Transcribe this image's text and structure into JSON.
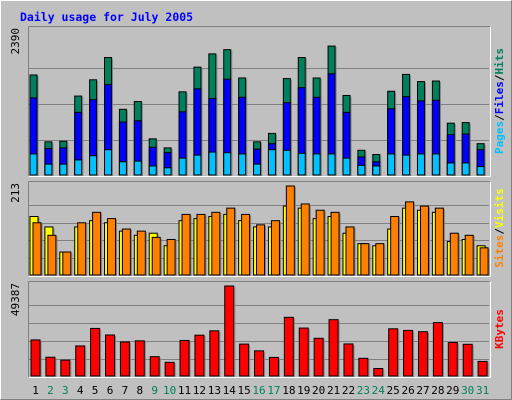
{
  "title": "Daily usage for July 2005",
  "colors": {
    "background": "#c0c0c0",
    "plot_bg": "#c0c0c0",
    "title": "#0000ff",
    "hits": "#00805c",
    "files": "#0000ff",
    "pages": "#00c0ff",
    "visits": "#ffff00",
    "sites": "#ff8000",
    "kbytes": "#ff0000",
    "day_weekday": "#000000",
    "day_weekend": "#00805c"
  },
  "chart_data": [
    {
      "type": "bar",
      "panel": "hits-files-pages",
      "ymax_label": "2390",
      "ylim": [
        0,
        2390
      ],
      "grid": true,
      "legend_parts": [
        "Pages",
        "Files",
        "Hits"
      ],
      "categories": [
        "1",
        "2",
        "3",
        "4",
        "5",
        "6",
        "7",
        "8",
        "9",
        "10",
        "11",
        "12",
        "13",
        "14",
        "15",
        "16",
        "17",
        "18",
        "19",
        "20",
        "21",
        "22",
        "23",
        "24",
        "25",
        "26",
        "27",
        "28",
        "29",
        "30",
        "31"
      ],
      "series": [
        {
          "name": "Hits",
          "values": [
            1660,
            550,
            560,
            1310,
            1580,
            1950,
            1090,
            1220,
            600,
            450,
            1380,
            1790,
            2010,
            2080,
            1610,
            550,
            690,
            1600,
            1950,
            1610,
            2140,
            1320,
            410,
            340,
            1390,
            1670,
            1550,
            1560,
            860,
            870,
            520
          ]
        },
        {
          "name": "Files",
          "values": [
            1280,
            440,
            450,
            1040,
            1250,
            1500,
            880,
            900,
            460,
            370,
            1050,
            1430,
            1270,
            1590,
            1290,
            430,
            520,
            1200,
            1450,
            1290,
            1680,
            1040,
            300,
            220,
            1100,
            1300,
            1230,
            1240,
            670,
            680,
            420
          ]
        },
        {
          "name": "Pages",
          "values": [
            350,
            180,
            180,
            250,
            320,
            420,
            220,
            230,
            150,
            120,
            280,
            330,
            380,
            370,
            350,
            180,
            420,
            410,
            360,
            350,
            350,
            280,
            160,
            150,
            350,
            330,
            350,
            350,
            200,
            200,
            140
          ]
        }
      ]
    },
    {
      "type": "bar",
      "panel": "visits-sites",
      "ymax_label": "213",
      "ylim": [
        0,
        213
      ],
      "grid": true,
      "legend_parts": [
        "Sites",
        "Visits"
      ],
      "categories": [
        "1",
        "2",
        "3",
        "4",
        "5",
        "6",
        "7",
        "8",
        "9",
        "10",
        "11",
        "12",
        "13",
        "14",
        "15",
        "16",
        "17",
        "18",
        "19",
        "20",
        "21",
        "22",
        "23",
        "24",
        "25",
        "26",
        "27",
        "28",
        "29",
        "30",
        "31"
      ],
      "series": [
        {
          "name": "Visits",
          "values": [
            140,
            115,
            55,
            115,
            130,
            125,
            105,
            95,
            100,
            70,
            130,
            135,
            140,
            145,
            130,
            115,
            115,
            165,
            160,
            135,
            140,
            100,
            75,
            70,
            110,
            160,
            155,
            150,
            80,
            85,
            70
          ]
        },
        {
          "name": "Sites",
          "values": [
            125,
            95,
            55,
            125,
            150,
            135,
            110,
            105,
            90,
            85,
            145,
            145,
            150,
            160,
            145,
            120,
            130,
            213,
            170,
            155,
            150,
            115,
            75,
            75,
            140,
            175,
            165,
            160,
            100,
            95,
            65
          ]
        }
      ]
    },
    {
      "type": "bar",
      "panel": "kbytes",
      "ymax_label": "49387",
      "ylim": [
        0,
        49387
      ],
      "grid": true,
      "legend_parts": [
        "KBytes"
      ],
      "categories": [
        "1",
        "2",
        "3",
        "4",
        "5",
        "6",
        "7",
        "8",
        "9",
        "10",
        "11",
        "12",
        "13",
        "14",
        "15",
        "16",
        "17",
        "18",
        "19",
        "20",
        "21",
        "22",
        "23",
        "24",
        "25",
        "26",
        "27",
        "28",
        "29",
        "30",
        "31"
      ],
      "series": [
        {
          "name": "KBytes",
          "values": [
            19800,
            10300,
            8700,
            16500,
            26100,
            22500,
            18700,
            19300,
            10600,
            7500,
            19500,
            22400,
            24800,
            49387,
            17500,
            13800,
            10200,
            32200,
            26300,
            20700,
            30900,
            17600,
            9700,
            4100,
            25900,
            25000,
            24300,
            29300,
            18400,
            17400,
            8000
          ]
        }
      ]
    }
  ],
  "days": {
    "labels": [
      "1",
      "2",
      "3",
      "4",
      "5",
      "6",
      "7",
      "8",
      "9",
      "10",
      "11",
      "12",
      "13",
      "14",
      "15",
      "16",
      "17",
      "18",
      "19",
      "20",
      "21",
      "22",
      "23",
      "24",
      "25",
      "26",
      "27",
      "28",
      "29",
      "30",
      "31"
    ],
    "weekend": [
      false,
      true,
      true,
      false,
      false,
      false,
      false,
      false,
      true,
      true,
      false,
      false,
      false,
      false,
      false,
      true,
      true,
      false,
      false,
      false,
      false,
      false,
      true,
      true,
      false,
      false,
      false,
      false,
      false,
      true,
      true
    ]
  }
}
